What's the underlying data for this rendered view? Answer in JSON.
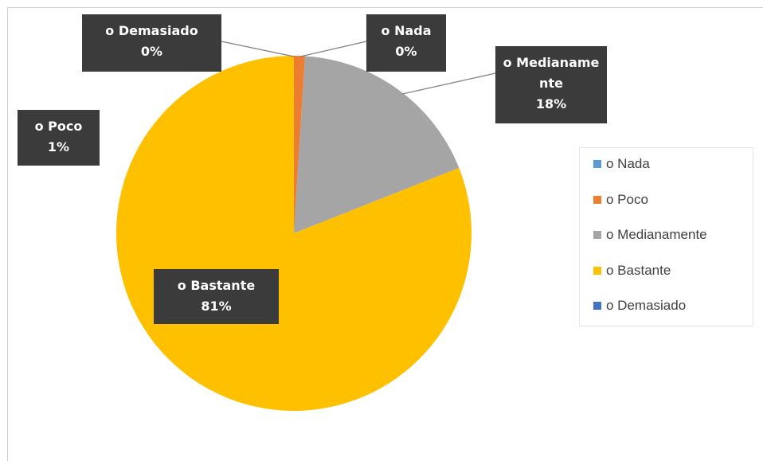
{
  "chart_data": {
    "type": "pie",
    "categories": [
      "o Nada",
      "o Poco",
      "o Medianamente",
      "o Bastante",
      "o Demasiado"
    ],
    "values": [
      0,
      1,
      18,
      81,
      0
    ],
    "value_labels": [
      "0%",
      "1%",
      "18%",
      "81%",
      "0%"
    ],
    "colors": [
      "#5b9bd5",
      "#ed7d31",
      "#a5a5a5",
      "#ffc000",
      "#4472c4"
    ],
    "legend": "right"
  }
}
